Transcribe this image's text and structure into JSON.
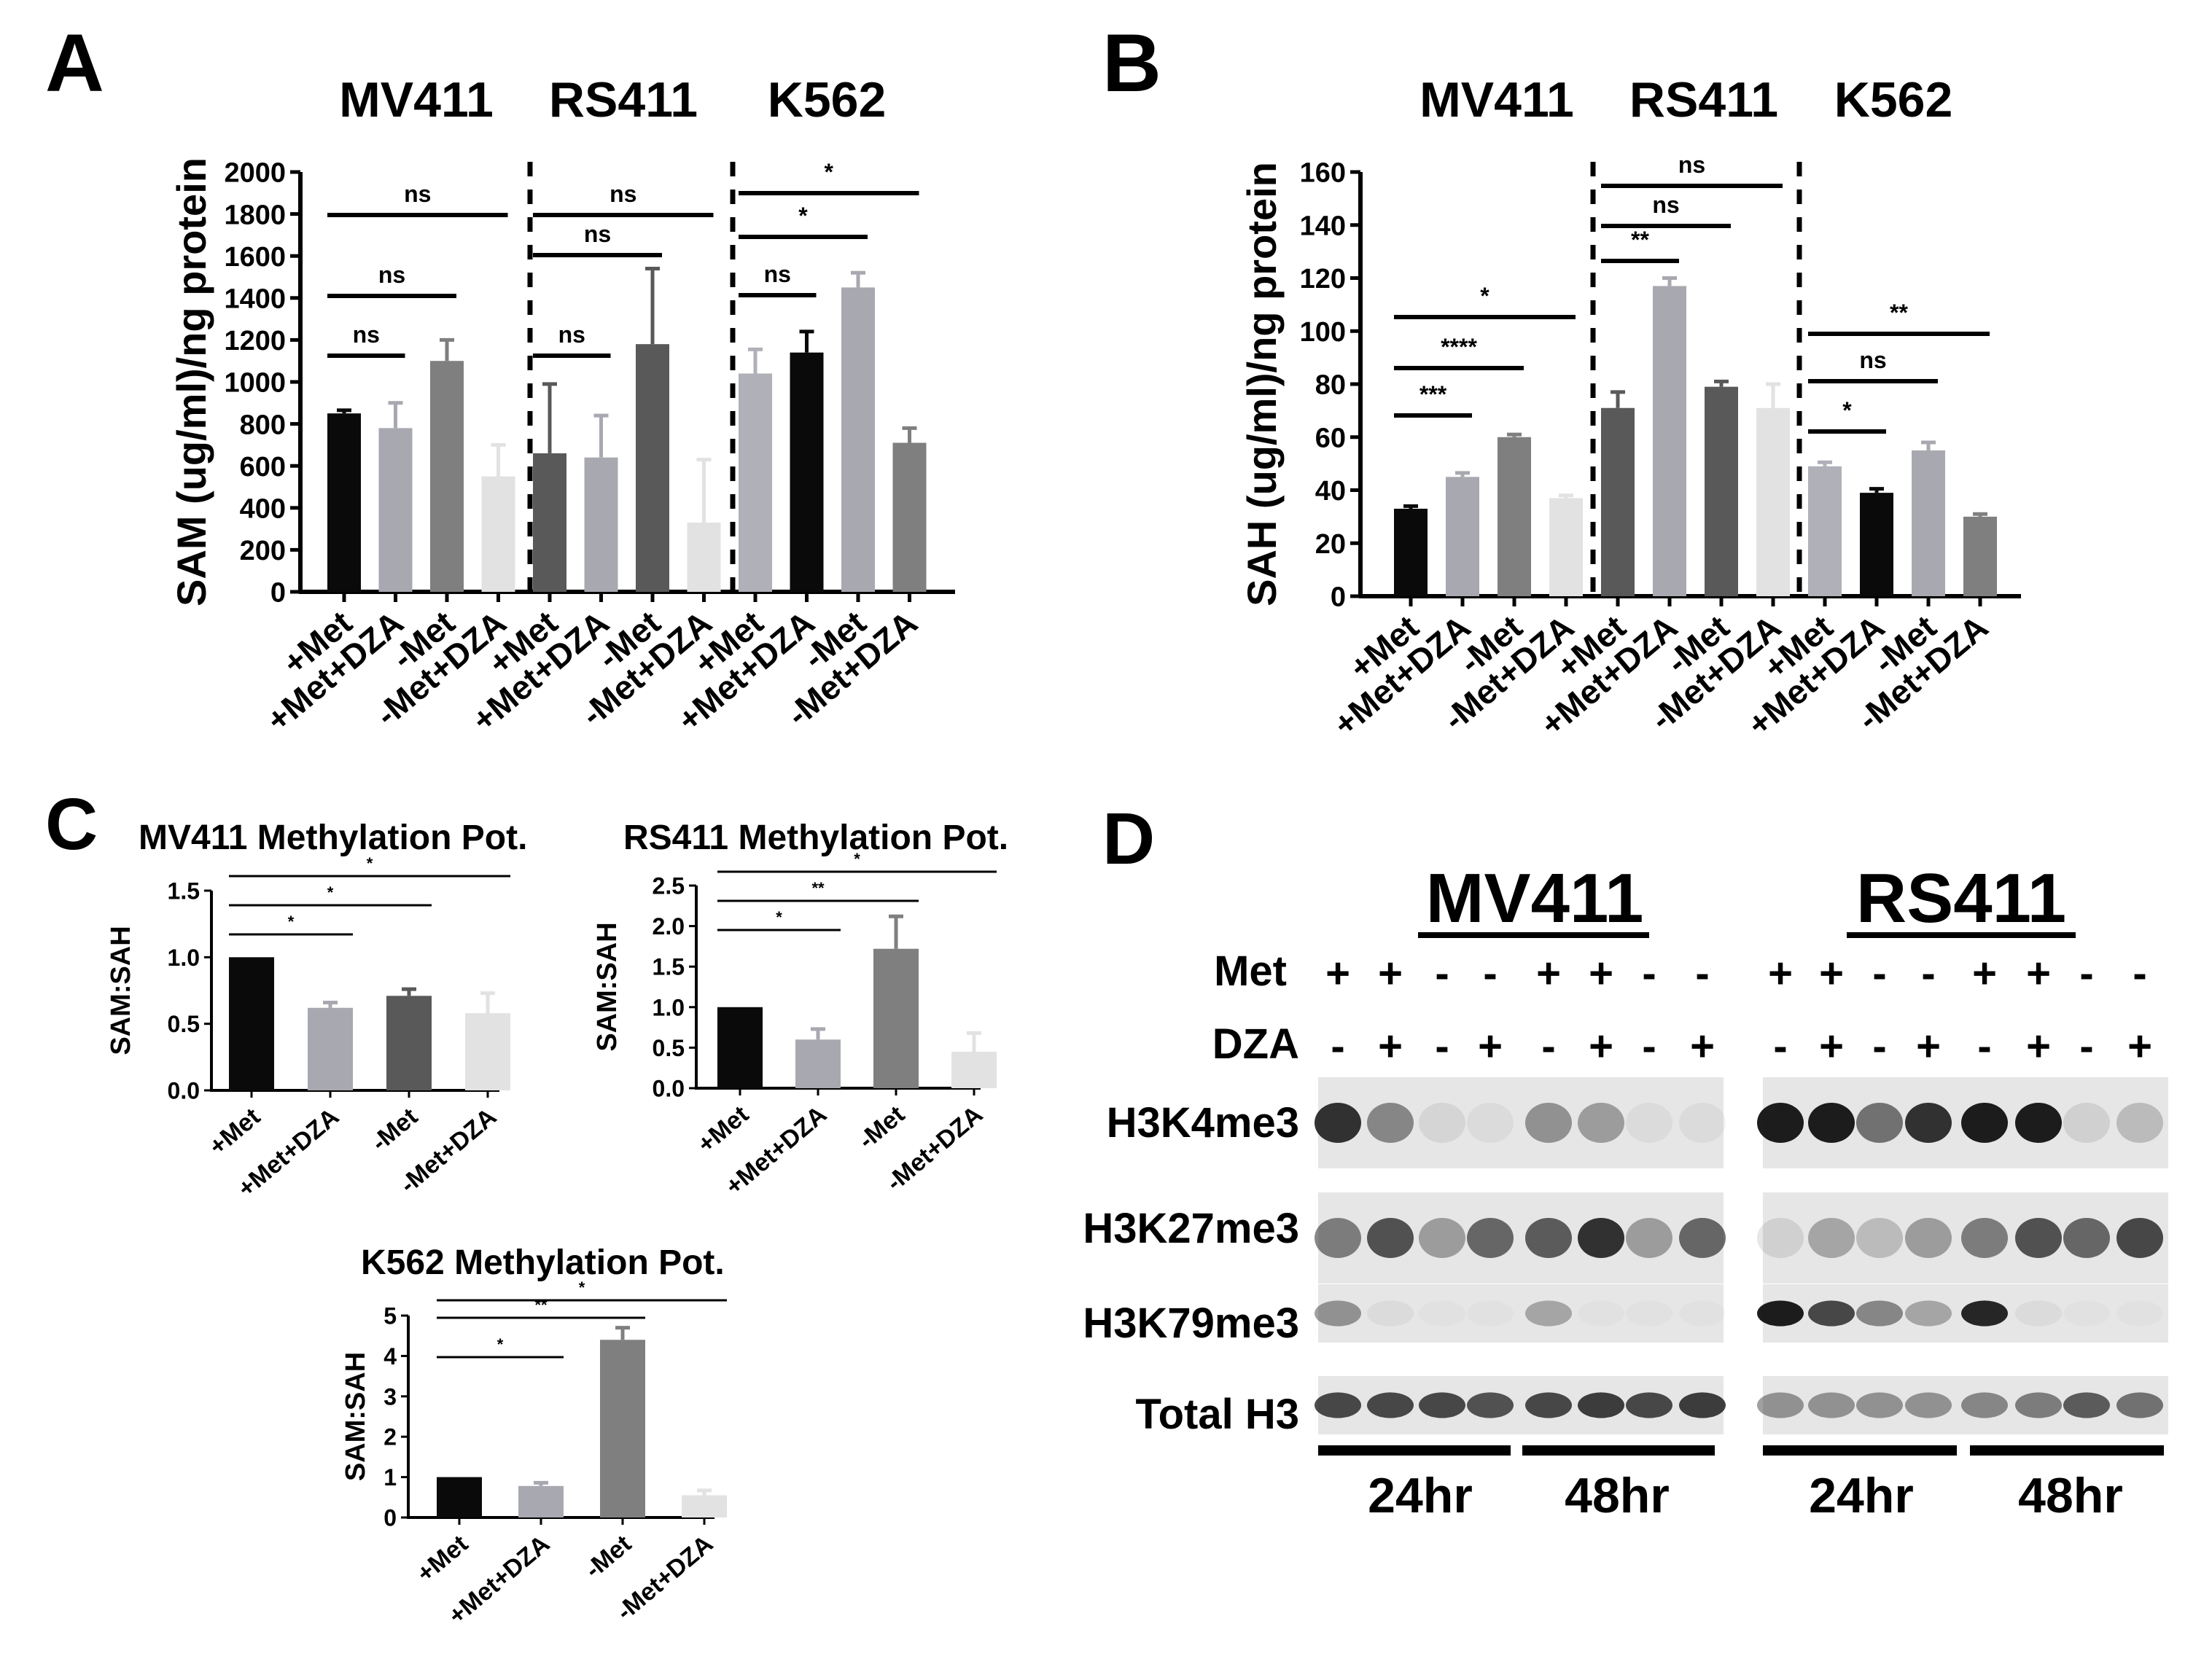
{
  "panel_labels": [
    "A",
    "B",
    "C",
    "D"
  ],
  "conditions": [
    "+Met",
    "+Met+DZA",
    "-Met",
    "-Met+DZA"
  ],
  "cell_lines": [
    "MV411",
    "RS411",
    "K562"
  ],
  "colors": {
    "black": "#0a0a0a",
    "light_gray": "#a8a8b0",
    "mid_gray": "#7f7f7f",
    "dark_gray": "#595959",
    "very_light_gray": "#e2e2e2",
    "pale_gray": "#b0b0b8"
  },
  "chart_data": [
    {
      "id": "A",
      "type": "bar",
      "ylabel": "SAM (ug/ml)/ng protein",
      "ylim": [
        0,
        2000
      ],
      "yticks": [
        0,
        200,
        400,
        600,
        800,
        1000,
        1200,
        1400,
        1600,
        1800,
        2000
      ],
      "groups": [
        "MV411",
        "RS411",
        "K562"
      ],
      "categories": [
        "+Met",
        "+Met+DZA",
        "-Met",
        "-Met+DZA",
        "+Met",
        "+Met+DZA",
        "-Met",
        "-Met+DZA",
        "+Met",
        "+Met+DZA",
        "-Met",
        "-Met+DZA"
      ],
      "values": [
        850,
        780,
        1100,
        550,
        660,
        640,
        1180,
        330,
        1040,
        1140,
        1450,
        710
      ],
      "errors": [
        15,
        120,
        100,
        150,
        330,
        200,
        360,
        300,
        115,
        100,
        70,
        70
      ],
      "colors": [
        "black",
        "light_gray",
        "mid_gray",
        "very_light_gray",
        "dark_gray",
        "light_gray",
        "dark_gray",
        "very_light_gray",
        "pale_gray",
        "black",
        "light_gray",
        "mid_gray"
      ],
      "significance": [
        {
          "from": 0,
          "to": 3,
          "label": "ns"
        },
        {
          "from": 0,
          "to": 2,
          "label": "ns"
        },
        {
          "from": 0,
          "to": 1,
          "label": "ns"
        },
        {
          "from": 4,
          "to": 7,
          "label": "ns"
        },
        {
          "from": 4,
          "to": 6,
          "label": "ns"
        },
        {
          "from": 4,
          "to": 5,
          "label": "ns"
        },
        {
          "from": 8,
          "to": 11,
          "label": "*"
        },
        {
          "from": 8,
          "to": 10,
          "label": "*"
        },
        {
          "from": 8,
          "to": 9,
          "label": "ns"
        }
      ]
    },
    {
      "id": "B",
      "type": "bar",
      "ylabel": "SAH (ug/ml)/ng protein",
      "ylim": [
        0,
        160
      ],
      "yticks": [
        0,
        20,
        40,
        60,
        80,
        100,
        120,
        140,
        160
      ],
      "groups": [
        "MV411",
        "RS411",
        "K562"
      ],
      "categories": [
        "+Met",
        "+Met+DZA",
        "-Met",
        "-Met+DZA",
        "+Met",
        "+Met+DZA",
        "-Met",
        "-Met+DZA",
        "+Met",
        "+Met+DZA",
        "-Met",
        "-Met+DZA"
      ],
      "values": [
        33,
        45,
        60,
        37,
        71,
        117,
        79,
        71,
        49,
        39,
        55,
        30
      ],
      "errors": [
        1,
        1.5,
        1,
        1,
        6,
        3,
        2,
        9,
        1.5,
        1.5,
        3,
        1
      ],
      "colors": [
        "black",
        "light_gray",
        "mid_gray",
        "very_light_gray",
        "dark_gray",
        "light_gray",
        "dark_gray",
        "very_light_gray",
        "pale_gray",
        "black",
        "light_gray",
        "mid_gray"
      ],
      "significance": [
        {
          "from": 0,
          "to": 3,
          "label": "*"
        },
        {
          "from": 0,
          "to": 2,
          "label": "****"
        },
        {
          "from": 0,
          "to": 1,
          "label": "***"
        },
        {
          "from": 4,
          "to": 7,
          "label": "ns"
        },
        {
          "from": 4,
          "to": 6,
          "label": "ns"
        },
        {
          "from": 4,
          "to": 5,
          "label": "**"
        },
        {
          "from": 8,
          "to": 11,
          "label": "**"
        },
        {
          "from": 8,
          "to": 10,
          "label": "ns"
        },
        {
          "from": 8,
          "to": 9,
          "label": "*"
        }
      ]
    },
    {
      "id": "C1",
      "type": "bar",
      "title": "MV411 Methylation Pot.",
      "ylabel": "SAM:SAH",
      "ylim": [
        0,
        1.5
      ],
      "yticks": [
        "0.0",
        "0.5",
        "1.0",
        "1.5"
      ],
      "categories": [
        "+Met",
        "+Met+DZA",
        "-Met",
        "-Met+DZA"
      ],
      "values": [
        1.0,
        0.62,
        0.71,
        0.58
      ],
      "errors": [
        0,
        0.04,
        0.05,
        0.15
      ],
      "colors": [
        "black",
        "light_gray",
        "dark_gray",
        "very_light_gray"
      ],
      "significance": [
        {
          "from": 0,
          "to": 3,
          "label": "*"
        },
        {
          "from": 0,
          "to": 2,
          "label": "*"
        },
        {
          "from": 0,
          "to": 1,
          "label": "*"
        }
      ]
    },
    {
      "id": "C2",
      "type": "bar",
      "title": "RS411 Methylation Pot.",
      "ylabel": "SAM:SAH",
      "ylim": [
        0,
        2.5
      ],
      "yticks": [
        "0.0",
        "0.5",
        "1.0",
        "1.5",
        "2.0",
        "2.5"
      ],
      "categories": [
        "+Met",
        "+Met+DZA",
        "-Met",
        "-Met+DZA"
      ],
      "values": [
        1.0,
        0.6,
        1.72,
        0.45
      ],
      "errors": [
        0,
        0.13,
        0.4,
        0.23
      ],
      "colors": [
        "black",
        "light_gray",
        "mid_gray",
        "very_light_gray"
      ],
      "significance": [
        {
          "from": 0,
          "to": 3,
          "label": "*"
        },
        {
          "from": 0,
          "to": 2,
          "label": "**"
        },
        {
          "from": 0,
          "to": 1,
          "label": "*"
        }
      ]
    },
    {
      "id": "C3",
      "type": "bar",
      "title": "K562 Methylation Pot.",
      "ylabel": "SAM:SAH",
      "ylim": [
        0,
        5
      ],
      "yticks": [
        "0",
        "1",
        "2",
        "3",
        "4",
        "5"
      ],
      "categories": [
        "+Met",
        "+Met+DZA",
        "-Met",
        "-Met+DZA"
      ],
      "values": [
        1.0,
        0.78,
        4.4,
        0.55
      ],
      "errors": [
        0,
        0.08,
        0.3,
        0.12
      ],
      "colors": [
        "black",
        "light_gray",
        "mid_gray",
        "very_light_gray"
      ],
      "significance": [
        {
          "from": 0,
          "to": 3,
          "label": "*"
        },
        {
          "from": 0,
          "to": 2,
          "label": "**"
        },
        {
          "from": 0,
          "to": 1,
          "label": "*"
        }
      ]
    }
  ],
  "western": {
    "cell_lines": [
      "MV411",
      "RS411"
    ],
    "met_row_label": "Met",
    "dza_row_label": "DZA",
    "met": [
      "+",
      "+",
      "-",
      "-",
      "+",
      "+",
      "-",
      "-"
    ],
    "dza": [
      "-",
      "+",
      "-",
      "+",
      "-",
      "+",
      "-",
      "+"
    ],
    "markers": [
      "H3K4me3",
      "H3K27me3",
      "H3K79me3",
      "Total H3"
    ],
    "timepoints": [
      "24hr",
      "48hr"
    ]
  }
}
